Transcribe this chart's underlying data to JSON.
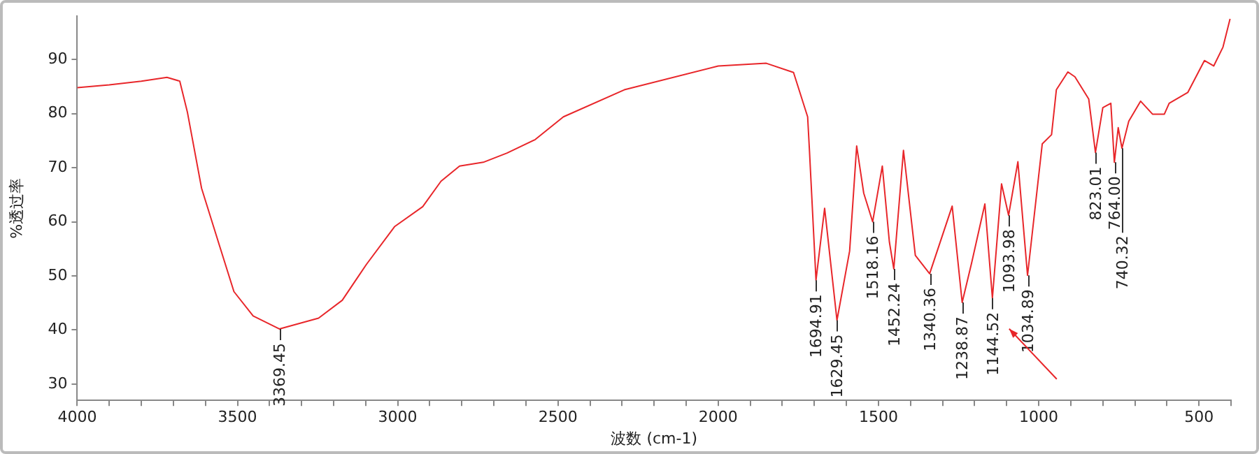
{
  "chart_data": {
    "type": "line",
    "xlabel": "波数 (cm-1)",
    "ylabel": "%透过率",
    "xlim": [
      4000,
      400
    ],
    "ylim": [
      27,
      98
    ],
    "xticks": [
      4000,
      {
        "value": 3900,
        "label": null
      },
      {
        "value": 3800,
        "label": null
      },
      {
        "value": 3700,
        "label": null
      },
      {
        "value": 3600,
        "label": null
      },
      3500,
      {
        "value": 3400,
        "label": null
      },
      {
        "value": 3300,
        "label": null
      },
      {
        "value": 3200,
        "label": null
      },
      {
        "value": 3100,
        "label": null
      },
      3000,
      {
        "value": 2900,
        "label": null
      },
      {
        "value": 2800,
        "label": null
      },
      {
        "value": 2700,
        "label": null
      },
      {
        "value": 2600,
        "label": null
      },
      2500,
      {
        "value": 2400,
        "label": null
      },
      {
        "value": 2300,
        "label": null
      },
      {
        "value": 2200,
        "label": null
      },
      {
        "value": 2100,
        "label": null
      },
      2000,
      {
        "value": 1900,
        "label": null
      },
      {
        "value": 1800,
        "label": null
      },
      {
        "value": 1700,
        "label": null
      },
      {
        "value": 1600,
        "label": null
      },
      1500,
      {
        "value": 1400,
        "label": null
      },
      {
        "value": 1300,
        "label": null
      },
      {
        "value": 1200,
        "label": null
      },
      {
        "value": 1100,
        "label": null
      },
      1000,
      {
        "value": 900,
        "label": null
      },
      {
        "value": 800,
        "label": null
      },
      {
        "value": 700,
        "label": null
      },
      {
        "value": 600,
        "label": null
      },
      500,
      {
        "value": 400,
        "label": null
      }
    ],
    "yticks": [
      30,
      40,
      50,
      60,
      70,
      80,
      90
    ],
    "grid": false,
    "legend": false,
    "marker": "none",
    "line_style": "solid",
    "series": [
      {
        "color": "#e8262a",
        "x": [
          4000,
          3900,
          3800,
          3720,
          3680,
          3656,
          3612,
          3555,
          3511,
          3451,
          3369.45,
          3247,
          3173,
          3098,
          3010,
          2922,
          2865,
          2807,
          2733,
          2659,
          2571,
          2483,
          2293,
          2000,
          1850,
          1765,
          1721,
          1715,
          1694.91,
          1668,
          1629.45,
          1590,
          1568,
          1546,
          1518.16,
          1488,
          1466,
          1452.24,
          1422,
          1385,
          1340.36,
          1270,
          1238.87,
          1209,
          1168,
          1144.52,
          1116,
          1093.98,
          1065,
          1034.89,
          989,
          960,
          945,
          909,
          887,
          844,
          823.01,
          800,
          775,
          764,
          752,
          740.32,
          719,
          682,
          645,
          608,
          593,
          535,
          483,
          454,
          425,
          403
        ],
        "values": [
          84.8,
          85.3,
          86,
          86.7,
          86,
          80.2,
          66.2,
          55.4,
          47.1,
          42.6,
          40.2,
          42.2,
          45.5,
          52.1,
          59.1,
          62.8,
          67.5,
          70.3,
          71,
          72.7,
          75.2,
          79.4,
          84.4,
          88.8,
          89.3,
          87.6,
          79.4,
          72.8,
          49.2,
          62.5,
          41.8,
          54.6,
          74,
          65.3,
          60,
          70.3,
          56.3,
          51.3,
          73.2,
          53.8,
          50.4,
          62.9,
          45.1,
          52.5,
          63.3,
          45.9,
          67,
          61.2,
          71.1,
          50.1,
          74.4,
          76.1,
          84.4,
          87.7,
          86.8,
          82.7,
          72.8,
          81.1,
          81.9,
          71,
          77.4,
          73.6,
          78.6,
          82.3,
          79.9,
          79.9,
          81.9,
          83.9,
          89.8,
          88.8,
          92.3,
          97.5
        ]
      }
    ],
    "annotations": [
      {
        "text": "3369.45",
        "x": 3369.45,
        "y": 40.2
      },
      {
        "text": "1694.91",
        "x": 1694.91,
        "y": 49.2
      },
      {
        "text": "1629.45",
        "x": 1629.45,
        "y": 41.8
      },
      {
        "text": "1518.16",
        "x": 1518.16,
        "y": 60
      },
      {
        "text": "1452.24",
        "x": 1452.24,
        "y": 51.3
      },
      {
        "text": "1340.36",
        "x": 1340.36,
        "y": 50.4
      },
      {
        "text": "1238.87",
        "x": 1238.87,
        "y": 45.1
      },
      {
        "text": "1144.52",
        "x": 1144.52,
        "y": 45.9
      },
      {
        "text": "1093.98",
        "x": 1093.98,
        "y": 61.2
      },
      {
        "text": "1034.89",
        "x": 1034.89,
        "y": 50.1
      },
      {
        "text": "823.01",
        "x": 823.01,
        "y": 72.8
      },
      {
        "text": "764.00",
        "x": 764,
        "y": 71
      },
      {
        "text": "740.32",
        "x": 740.32,
        "y": 73.6
      }
    ]
  }
}
